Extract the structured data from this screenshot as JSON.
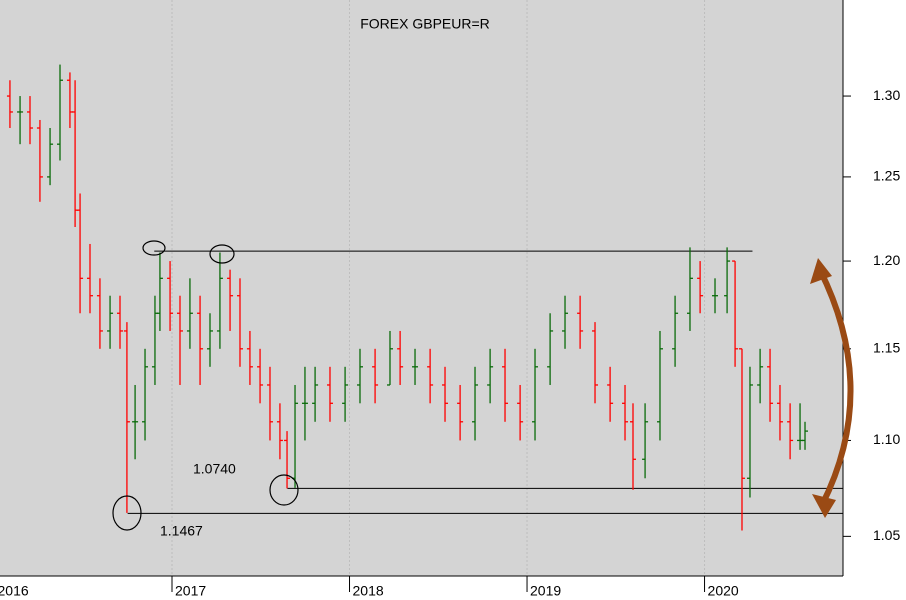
{
  "chart_data": {
    "type": "ohlc",
    "title": "FOREX GBPEUR=R",
    "log_scale": true,
    "up_color": "#0a6b0a",
    "down_color": "#ff0000",
    "xlim": [
      2016.031,
      2020.78
    ],
    "xticks": [
      2016,
      2017,
      2018,
      2019,
      2020
    ],
    "ylim": [
      1.03,
      1.362
    ],
    "yticks": [
      1.05,
      {
        "value": 1.1,
        "label": "1.10"
      },
      1.15,
      {
        "value": 1.2,
        "label": "1.20"
      },
      1.25,
      {
        "value": 1.3,
        "label": "1.30"
      }
    ],
    "grid": true,
    "x": [
      2016.087,
      2016.144,
      2016.2,
      2016.256,
      2016.313,
      2016.369,
      2016.425,
      2016.454,
      2016.482,
      2016.538,
      2016.594,
      2016.651,
      2016.707,
      2016.746,
      2016.792,
      2016.848,
      2016.904,
      2016.932,
      2016.989,
      2017.045,
      2017.101,
      2017.158,
      2017.214,
      2017.27,
      2017.327,
      2017.383,
      2017.439,
      2017.496,
      2017.552,
      2017.608,
      2017.648,
      2017.693,
      2017.749,
      2017.806,
      2017.89,
      2017.975,
      2018.059,
      2018.144,
      2018.228,
      2018.285,
      2018.369,
      2018.454,
      2018.538,
      2018.623,
      2018.707,
      2018.792,
      2018.876,
      2018.961,
      2019.045,
      2019.13,
      2019.214,
      2019.299,
      2019.383,
      2019.468,
      2019.552,
      2019.597,
      2019.665,
      2019.749,
      2019.834,
      2019.918,
      2019.975,
      2020.059,
      2020.127,
      2020.172,
      2020.211,
      2020.256,
      2020.313,
      2020.369,
      2020.425,
      2020.482,
      2020.538,
      2020.566
    ],
    "open": [
      1.3,
      1.29,
      1.29,
      1.28,
      1.25,
      1.27,
      1.31,
      1.29,
      1.23,
      1.19,
      1.18,
      1.16,
      1.17,
      1.16,
      1.11,
      1.11,
      1.14,
      1.17,
      1.19,
      1.17,
      1.16,
      1.17,
      1.15,
      1.16,
      1.19,
      1.18,
      1.15,
      1.14,
      1.13,
      1.11,
      1.1,
      1.08,
      1.12,
      1.12,
      1.13,
      1.12,
      1.13,
      1.14,
      1.13,
      1.15,
      1.14,
      1.14,
      1.13,
      1.12,
      1.11,
      1.13,
      1.14,
      1.12,
      1.11,
      1.14,
      1.16,
      1.17,
      1.16,
      1.13,
      1.12,
      1.11,
      1.09,
      1.11,
      1.15,
      1.17,
      1.19,
      1.18,
      1.18,
      1.2,
      1.15,
      1.08,
      1.13,
      1.14,
      1.12,
      1.11,
      1.1,
      1.1
    ],
    "high": [
      1.31,
      1.3,
      1.3,
      1.285,
      1.28,
      1.32,
      1.315,
      1.31,
      1.24,
      1.21,
      1.19,
      1.18,
      1.18,
      1.165,
      1.13,
      1.15,
      1.18,
      1.205,
      1.2,
      1.18,
      1.19,
      1.18,
      1.17,
      1.205,
      1.195,
      1.19,
      1.16,
      1.15,
      1.14,
      1.12,
      1.105,
      1.13,
      1.14,
      1.14,
      1.14,
      1.14,
      1.15,
      1.15,
      1.16,
      1.16,
      1.15,
      1.15,
      1.14,
      1.13,
      1.14,
      1.15,
      1.15,
      1.13,
      1.15,
      1.17,
      1.18,
      1.18,
      1.165,
      1.14,
      1.13,
      1.12,
      1.12,
      1.16,
      1.18,
      1.208,
      1.2,
      1.19,
      1.208,
      1.2,
      1.15,
      1.14,
      1.15,
      1.15,
      1.13,
      1.12,
      1.12,
      1.11
    ],
    "low": [
      1.28,
      1.27,
      1.27,
      1.235,
      1.245,
      1.26,
      1.28,
      1.22,
      1.17,
      1.17,
      1.15,
      1.15,
      1.15,
      1.062,
      1.09,
      1.1,
      1.13,
      1.16,
      1.16,
      1.13,
      1.15,
      1.13,
      1.14,
      1.15,
      1.16,
      1.14,
      1.13,
      1.12,
      1.1,
      1.09,
      1.0747,
      1.075,
      1.1,
      1.11,
      1.11,
      1.11,
      1.12,
      1.12,
      1.13,
      1.13,
      1.13,
      1.12,
      1.11,
      1.1,
      1.1,
      1.12,
      1.11,
      1.1,
      1.1,
      1.13,
      1.15,
      1.15,
      1.12,
      1.11,
      1.1,
      1.074,
      1.08,
      1.1,
      1.14,
      1.16,
      1.17,
      1.17,
      1.17,
      1.14,
      1.053,
      1.07,
      1.12,
      1.11,
      1.1,
      1.09,
      1.095,
      1.095
    ],
    "close": [
      1.29,
      1.29,
      1.28,
      1.25,
      1.27,
      1.31,
      1.29,
      1.23,
      1.19,
      1.18,
      1.16,
      1.17,
      1.16,
      1.11,
      1.11,
      1.14,
      1.17,
      1.19,
      1.17,
      1.16,
      1.17,
      1.15,
      1.16,
      1.19,
      1.18,
      1.15,
      1.14,
      1.13,
      1.11,
      1.1,
      1.08,
      1.12,
      1.12,
      1.13,
      1.12,
      1.13,
      1.14,
      1.13,
      1.15,
      1.14,
      1.14,
      1.13,
      1.12,
      1.11,
      1.13,
      1.14,
      1.12,
      1.11,
      1.14,
      1.16,
      1.17,
      1.16,
      1.13,
      1.12,
      1.11,
      1.09,
      1.11,
      1.15,
      1.17,
      1.19,
      1.18,
      1.18,
      1.2,
      1.15,
      1.08,
      1.13,
      1.14,
      1.12,
      1.11,
      1.1,
      1.1,
      1.105
    ],
    "lines": [
      {
        "y": 1.2058,
        "x": [
          2016.9,
          2020.27
        ]
      },
      {
        "y": 1.0747,
        "x": [
          2017.65,
          2020.78
        ]
      },
      {
        "y": 1.0618,
        "x": [
          2016.75,
          2020.78
        ]
      }
    ],
    "annotations": [
      "1.0740",
      "1.1467"
    ]
  }
}
